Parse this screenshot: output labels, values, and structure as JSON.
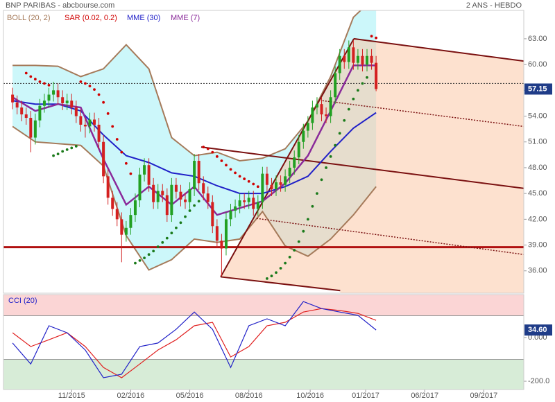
{
  "chart_data": {
    "type": "candlestick",
    "title": "BNP PARIBAS - abcbourse.com",
    "subtitle": "2 ANS - HEBDO",
    "up_color": "#22a022",
    "down_color": "#d42020",
    "open": [
      56.5,
      55.6,
      55.0,
      54.2,
      53.8,
      51.5,
      53.5,
      55.2,
      55.8,
      56.5,
      57.0,
      56.2,
      55.5,
      55.8,
      55.0,
      54.0,
      53.0,
      52.8,
      53.6,
      53.0,
      51.0,
      47.0,
      44.5,
      43.2,
      42.0,
      40.2,
      41.0,
      42.5,
      44.2,
      47.2,
      48.3,
      46.0,
      44.0,
      45.3,
      44.8,
      42.5,
      46.0,
      45.2,
      44.3,
      44.0,
      45.5,
      48.8,
      46.2,
      45.0,
      44.0,
      41.2,
      39.5,
      38.6,
      42.0,
      43.0,
      43.5,
      44.2,
      44.0,
      44.5,
      43.2,
      44.0,
      47.3,
      46.0,
      45.5,
      46.3,
      46.0,
      47.0,
      48.0,
      49.2,
      51.0,
      52.3,
      53.2,
      55.0,
      55.4,
      54.2,
      54.0,
      56.2,
      59.0,
      61.0,
      60.3,
      62.0,
      60.2,
      61.0,
      60.0,
      61.0,
      60.2
    ],
    "high": [
      57.3,
      56.4,
      55.8,
      55.0,
      54.6,
      54.3,
      56.0,
      56.6,
      57.3,
      58.0,
      57.8,
      57.0,
      56.6,
      56.6,
      55.8,
      54.8,
      53.8,
      54.4,
      54.4,
      53.8,
      51.8,
      47.8,
      45.3,
      44.0,
      42.8,
      41.8,
      43.3,
      45.0,
      48.0,
      49.1,
      49.1,
      46.8,
      46.1,
      46.1,
      45.6,
      46.8,
      46.8,
      46.0,
      45.1,
      46.3,
      49.6,
      49.6,
      47.0,
      45.8,
      44.8,
      42.0,
      40.3,
      42.8,
      43.8,
      44.3,
      45.0,
      45.0,
      45.3,
      45.3,
      44.8,
      48.1,
      48.1,
      46.8,
      47.1,
      47.1,
      47.8,
      48.8,
      50.0,
      51.8,
      53.1,
      54.0,
      55.8,
      56.2,
      56.2,
      55.0,
      57.0,
      59.8,
      61.8,
      61.8,
      62.8,
      62.8,
      61.8,
      61.8,
      61.8,
      61.8,
      61.0
    ],
    "low": [
      54.8,
      54.2,
      53.4,
      53.0,
      49.8,
      50.7,
      52.7,
      54.4,
      55.0,
      55.7,
      55.4,
      54.7,
      54.7,
      54.2,
      53.2,
      52.2,
      51.5,
      52.0,
      52.2,
      50.2,
      46.2,
      43.7,
      42.4,
      41.2,
      37.0,
      39.4,
      40.2,
      41.7,
      43.4,
      46.4,
      45.2,
      43.2,
      43.2,
      44.0,
      41.7,
      41.7,
      44.4,
      43.5,
      43.2,
      43.2,
      44.7,
      45.4,
      44.2,
      43.2,
      40.4,
      38.7,
      35.4,
      37.8,
      41.2,
      42.2,
      42.7,
      43.2,
      43.2,
      42.4,
      42.4,
      43.2,
      45.2,
      44.7,
      44.7,
      45.2,
      45.2,
      46.2,
      47.2,
      48.4,
      50.2,
      51.5,
      52.4,
      54.2,
      53.4,
      53.2,
      53.2,
      55.4,
      58.2,
      59.5,
      59.5,
      59.4,
      59.4,
      59.2,
      59.2,
      59.4,
      56.9
    ],
    "close": [
      55.6,
      55.0,
      54.2,
      53.8,
      51.5,
      53.5,
      55.2,
      55.8,
      56.5,
      57.0,
      56.2,
      55.5,
      55.8,
      55.0,
      54.0,
      53.0,
      52.8,
      53.6,
      53.0,
      51.0,
      47.0,
      44.5,
      43.2,
      42.0,
      40.2,
      41.0,
      42.5,
      44.2,
      47.2,
      48.3,
      46.0,
      44.0,
      45.3,
      44.8,
      42.5,
      46.0,
      45.2,
      44.3,
      44.0,
      45.5,
      48.8,
      46.2,
      45.0,
      44.0,
      41.2,
      39.5,
      38.6,
      42.0,
      43.0,
      43.5,
      44.2,
      44.0,
      44.5,
      43.2,
      44.0,
      47.3,
      46.0,
      45.5,
      46.3,
      46.0,
      47.0,
      48.0,
      49.2,
      51.0,
      52.3,
      53.2,
      55.0,
      55.4,
      54.2,
      54.0,
      56.2,
      59.0,
      61.0,
      60.3,
      62.0,
      60.2,
      61.0,
      60.0,
      61.0,
      60.2,
      57.15
    ],
    "xlim": [
      -2,
      112.5
    ],
    "xticks": [
      {
        "value": 13,
        "label": "11/2015"
      },
      {
        "value": 26,
        "label": "02/2016"
      },
      {
        "value": 39,
        "label": "05/2016"
      },
      {
        "value": 52,
        "label": "08/2016"
      },
      {
        "value": 65.5,
        "label": "10/2016"
      },
      {
        "value": 77.7,
        "label": "01/2017"
      },
      {
        "value": 90.7,
        "label": "06/2017"
      },
      {
        "value": 103.7,
        "label": "09/2017"
      }
    ],
    "ylim": [
      33.4,
      66.3
    ],
    "yticks": [
      {
        "value": 36,
        "label": "36.00"
      },
      {
        "value": 39,
        "label": "39.00"
      },
      {
        "value": 42,
        "label": "42.00"
      },
      {
        "value": 45,
        "label": "45.00"
      },
      {
        "value": 48,
        "label": "48.00"
      },
      {
        "value": 51,
        "label": "51.00"
      },
      {
        "value": 54,
        "label": "54.00"
      },
      {
        "value": 57,
        "label": "57.00"
      },
      {
        "value": 60,
        "label": "60.00"
      },
      {
        "value": 63,
        "label": "63.00"
      }
    ],
    "last_price": 57.15,
    "label_color": "#1f3c88",
    "reference_line": 57.8,
    "support_line": {
      "value": 38.75,
      "color": "#b01010"
    },
    "indicator_x": [
      0,
      5,
      10,
      15,
      20,
      25,
      30,
      35,
      40,
      45,
      50,
      55,
      60,
      65,
      70,
      75,
      80
    ],
    "bollinger": {
      "name": "BOLL (20, 2)",
      "color": "#a57a5a",
      "fill": "#ccf7fa",
      "upper": [
        59.9,
        59.9,
        59.8,
        58.6,
        59.5,
        62.3,
        59.5,
        51.5,
        49.4,
        49.8,
        48.8,
        49.1,
        50.2,
        53.4,
        58.6,
        65.5,
        68.0
      ],
      "lower": [
        52.8,
        51.0,
        50.8,
        50.6,
        48.2,
        40.1,
        36.1,
        37.3,
        39.7,
        39.3,
        39.7,
        42.9,
        38.9,
        37.7,
        39.7,
        42.5,
        45.8
      ]
    },
    "sar": {
      "name": "SAR (0.02, 0.2)",
      "color": "#d00000",
      "color_below": "#1a7a1a",
      "values": [
        null,
        null,
        null,
        59.0,
        58.6,
        58.3,
        58.0,
        57.8,
        57.6,
        49.4,
        49.6,
        49.9,
        50.1,
        50.3,
        50.5,
        58.0,
        57.8,
        57.5,
        57.1,
        56.5,
        55.6,
        54.3,
        52.8,
        51.3,
        49.8,
        48.5,
        47.3,
        36.9,
        37.2,
        37.5,
        37.9,
        38.3,
        38.8,
        39.3,
        39.8,
        40.4,
        41.0,
        41.6,
        42.3,
        43.0,
        43.6,
        44.1,
        50.4,
        50.2,
        49.8,
        49.3,
        48.8,
        48.3,
        47.8,
        47.4,
        47.0,
        46.7,
        46.4,
        46.1,
        45.8,
        null,
        35.1,
        35.4,
        35.8,
        36.3,
        36.9,
        37.6,
        38.4,
        39.4,
        40.6,
        42.0,
        43.5,
        45.0,
        46.6,
        48.0,
        49.3,
        50.6,
        52.0,
        53.5,
        54.8,
        56.0,
        57.0,
        57.8,
        58.5,
        63.3,
        63.1
      ]
    },
    "mme30": {
      "name": "MME (30)",
      "color": "#2020c8",
      "values": [
        55.8,
        55.4,
        55.4,
        54.6,
        51.8,
        49.4,
        48.6,
        47.4,
        47.0,
        45.9,
        45.0,
        45.0,
        45.8,
        47.0,
        49.9,
        52.6,
        54.4
      ]
    },
    "mme7": {
      "name": "MME (7)",
      "color": "#8a2a9a",
      "values": [
        56.2,
        54.6,
        55.4,
        55.0,
        49.0,
        43.7,
        45.8,
        43.7,
        45.8,
        42.5,
        43.3,
        44.1,
        46.2,
        49.4,
        54.6,
        59.9,
        59.9
      ]
    },
    "trend_color": "#7a1010",
    "trend_fill": "#fbc9a8",
    "trend_lines": [
      {
        "x": [
          45.8,
          75.1
        ],
        "y": [
          35.3,
          63.0
        ],
        "style": "solid"
      },
      {
        "x": [
          75.1,
          112.5
        ],
        "y": [
          63.0,
          60.4
        ],
        "style": "solid"
      },
      {
        "x": [
          41.5,
          112.5
        ],
        "y": [
          50.4,
          45.6
        ],
        "style": "solid"
      },
      {
        "x": [
          45.8,
          72.1
        ],
        "y": [
          35.3,
          33.7
        ],
        "style": "solid"
      },
      {
        "x": [
          68.2,
          112.5
        ],
        "y": [
          55.8,
          52.8
        ],
        "style": "dotted"
      },
      {
        "x": [
          53.7,
          112.5
        ],
        "y": [
          42.1,
          37.9
        ],
        "style": "dotted"
      }
    ],
    "cci": {
      "name": "CCI (20)",
      "color": "#2020c8",
      "signal_color": "#e02020",
      "upper_color": "#fbd5d5",
      "lower_color": "#d7ecd7",
      "x": [
        0,
        4,
        8,
        12,
        16,
        20,
        24,
        28,
        32,
        36,
        40,
        44,
        48,
        52,
        56,
        60,
        64,
        68,
        72,
        76,
        80
      ],
      "values": [
        -25,
        -121,
        54,
        22,
        -57,
        -184,
        -168,
        -41,
        -25,
        38,
        117,
        38,
        -137,
        54,
        86,
        54,
        165,
        133,
        117,
        102,
        34.6
      ],
      "signal": [
        22,
        -41,
        -10,
        22,
        -41,
        -137,
        -184,
        -121,
        -57,
        -10,
        54,
        70,
        -89,
        -41,
        54,
        70,
        117,
        133,
        124,
        111,
        79
      ],
      "upper": 100,
      "lower": -100,
      "ylim": [
        -238,
        197
      ],
      "yticks": [
        {
          "value": 0,
          "label": "0.000"
        },
        {
          "value": -200,
          "label": "-200.0"
        }
      ],
      "last_value": 34.6,
      "last_value_label": "34.60"
    }
  }
}
